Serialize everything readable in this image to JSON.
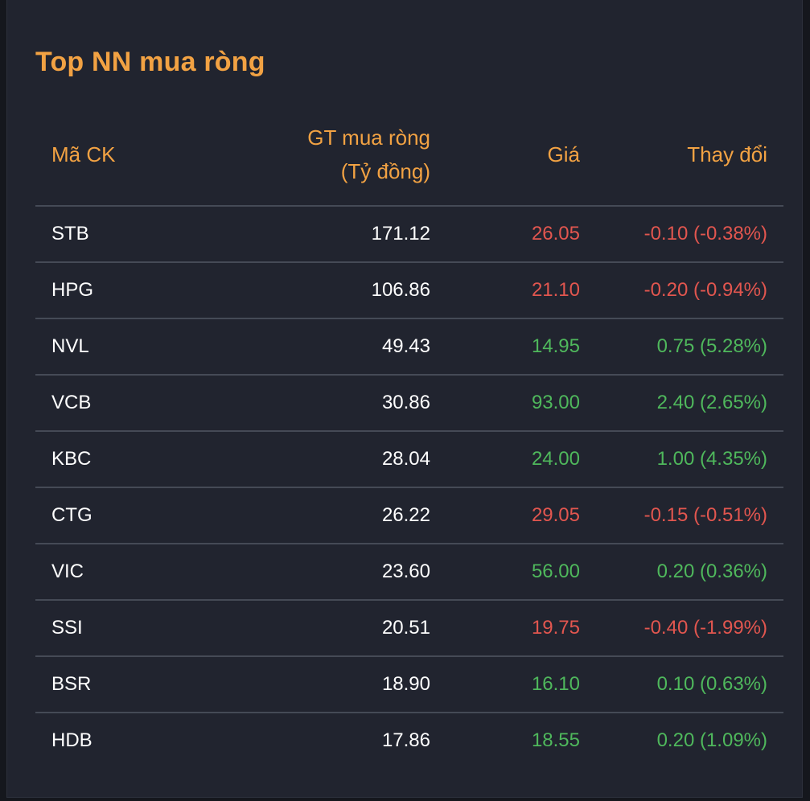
{
  "title": "Top NN mua ròng",
  "headers": {
    "code": "Mã CK",
    "value_line1": "GT mua ròng",
    "value_line2": "(Tỷ đồng)",
    "price": "Giá",
    "change": "Thay đổi"
  },
  "colors": {
    "accent": "#f2a243",
    "up": "#4fb85c",
    "down": "#e2564f",
    "background": "#21242f"
  },
  "rows": [
    {
      "code": "STB",
      "value": "171.12",
      "price": "26.05",
      "change": "-0.10 (-0.38%)",
      "direction": "down"
    },
    {
      "code": "HPG",
      "value": "106.86",
      "price": "21.10",
      "change": "-0.20 (-0.94%)",
      "direction": "down"
    },
    {
      "code": "NVL",
      "value": "49.43",
      "price": "14.95",
      "change": "0.75 (5.28%)",
      "direction": "up"
    },
    {
      "code": "VCB",
      "value": "30.86",
      "price": "93.00",
      "change": "2.40 (2.65%)",
      "direction": "up"
    },
    {
      "code": "KBC",
      "value": "28.04",
      "price": "24.00",
      "change": "1.00 (4.35%)",
      "direction": "up"
    },
    {
      "code": "CTG",
      "value": "26.22",
      "price": "29.05",
      "change": "-0.15 (-0.51%)",
      "direction": "down"
    },
    {
      "code": "VIC",
      "value": "23.60",
      "price": "56.00",
      "change": "0.20 (0.36%)",
      "direction": "up"
    },
    {
      "code": "SSI",
      "value": "20.51",
      "price": "19.75",
      "change": "-0.40 (-1.99%)",
      "direction": "down"
    },
    {
      "code": "BSR",
      "value": "18.90",
      "price": "16.10",
      "change": "0.10 (0.63%)",
      "direction": "up"
    },
    {
      "code": "HDB",
      "value": "17.86",
      "price": "18.55",
      "change": "0.20 (1.09%)",
      "direction": "up"
    }
  ]
}
